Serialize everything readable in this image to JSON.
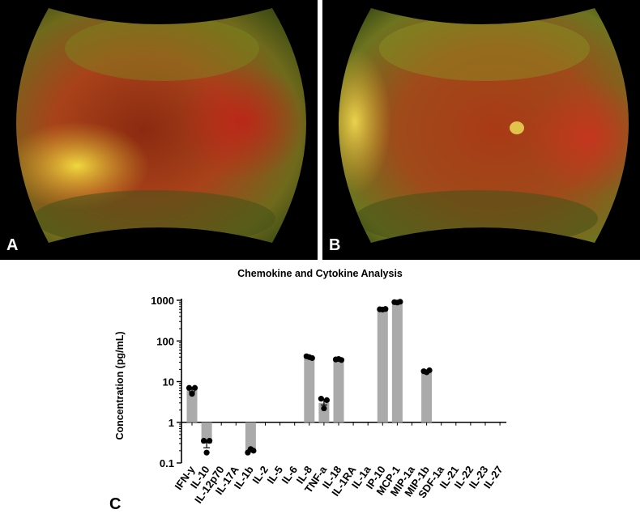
{
  "panels": [
    {
      "letter": "A",
      "content": "fundus-photograph"
    },
    {
      "letter": "B",
      "content": "fundus-photograph"
    }
  ],
  "figure_letter": "C",
  "colors": {
    "bar": "#aaaaaa",
    "point": "#000000",
    "axis": "#000000",
    "photo_background": "#000000"
  },
  "chart_data": {
    "type": "bar",
    "title": "Chemokine and Cytokine Analysis",
    "xlabel": "",
    "ylabel": "Concentration (pg/mL)",
    "yscale": "log",
    "ylim": [
      0.1,
      1000
    ],
    "baseline": 1,
    "yticks": [
      "0.1",
      "1",
      "10",
      "100",
      "1000"
    ],
    "grid": false,
    "categories": [
      "IFN-y",
      "IL-10",
      "IL-12p70",
      "IL-17A",
      "IL-1b",
      "IL-2",
      "IL-5",
      "IL-6",
      "IL-8",
      "TNF-a",
      "IL-18",
      "IL-1RA",
      "IL-1a",
      "IP-10",
      "MCP-1",
      "MIP-1a",
      "MIP-1b",
      "SDF-1a",
      "IL-21",
      "IL-22",
      "IL-23",
      "IL-27"
    ],
    "values": [
      6.5,
      0.3,
      null,
      null,
      0.2,
      null,
      null,
      null,
      40,
      3.0,
      35,
      null,
      null,
      600,
      900,
      null,
      18,
      null,
      null,
      null,
      null,
      null
    ],
    "points": [
      [
        7.0,
        7.0,
        5.0
      ],
      [
        0.35,
        0.35,
        0.18
      ],
      [],
      [],
      [
        0.18,
        0.2,
        0.22
      ],
      [],
      [],
      [],
      [
        42,
        38,
        40
      ],
      [
        3.8,
        3.5,
        2.2
      ],
      [
        35,
        34,
        36
      ],
      [],
      [],
      [
        600,
        610,
        590
      ],
      [
        900,
        920,
        880
      ],
      [],
      [
        18,
        19,
        17
      ],
      [],
      [],
      [],
      [],
      []
    ]
  }
}
